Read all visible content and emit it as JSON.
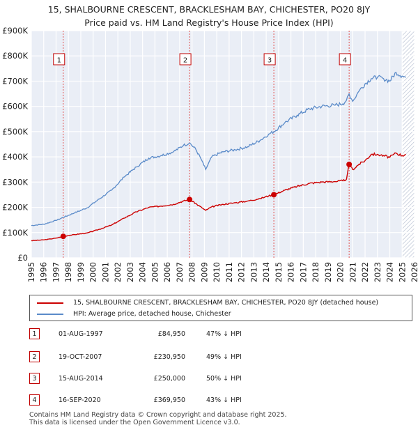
{
  "chart_data": {
    "type": "line",
    "title": "15, SHALBOURNE CRESCENT, BRACKLESHAM BAY, CHICHESTER, PO20 8JY",
    "subtitle": "Price paid vs. HM Land Registry's House Price Index (HPI)",
    "xlim": [
      1995,
      2026
    ],
    "ylim": [
      0,
      900000
    ],
    "x_ticks": [
      "1995",
      "1996",
      "1997",
      "1998",
      "1999",
      "2000",
      "2001",
      "2002",
      "2003",
      "2004",
      "2005",
      "2006",
      "2007",
      "2008",
      "2009",
      "2010",
      "2011",
      "2012",
      "2013",
      "2014",
      "2015",
      "2016",
      "2017",
      "2018",
      "2019",
      "2020",
      "2021",
      "2022",
      "2023",
      "2024",
      "2025",
      "2026"
    ],
    "y_ticks": [
      {
        "value": 0,
        "label": "£0"
      },
      {
        "value": 100000,
        "label": "£100K"
      },
      {
        "value": 200000,
        "label": "£200K"
      },
      {
        "value": 300000,
        "label": "£300K"
      },
      {
        "value": 400000,
        "label": "£400K"
      },
      {
        "value": 500000,
        "label": "£500K"
      },
      {
        "value": 600000,
        "label": "£600K"
      },
      {
        "value": 700000,
        "label": "£700K"
      },
      {
        "value": 800000,
        "label": "£800K"
      },
      {
        "value": 900000,
        "label": "£900K"
      }
    ],
    "grid": true,
    "future_from": 2025.0,
    "series": [
      {
        "name": "15, SHALBOURNE CRESCENT, BRACKLESHAM BAY, CHICHESTER, PO20 8JY (detached house)",
        "color": "#cc0000",
        "x": [
          1995.0,
          1996.0,
          1997.0,
          1997.58,
          1998.5,
          1999.5,
          2000.5,
          2001.5,
          2002.5,
          2003.5,
          2004.5,
          2005.5,
          2006.5,
          2007.3,
          2007.8,
          2008.3,
          2008.8,
          2009.1,
          2009.6,
          2010.5,
          2011.5,
          2012.5,
          2013.5,
          2014.2,
          2014.62,
          2015.5,
          2016.5,
          2017.5,
          2018.5,
          2019.5,
          2020.2,
          2020.5,
          2020.71,
          2021.0,
          2021.5,
          2022.0,
          2022.5,
          2023.0,
          2023.5,
          2024.0,
          2024.5,
          2025.0,
          2025.3
        ],
        "values": [
          68000,
          71000,
          78000,
          84950,
          92000,
          98000,
          113000,
          130000,
          157000,
          182000,
          200000,
          205000,
          212000,
          225000,
          230950,
          215000,
          198000,
          188000,
          202000,
          212000,
          218000,
          225000,
          235000,
          245000,
          250000,
          268000,
          283000,
          295000,
          300000,
          302000,
          305000,
          312000,
          369950,
          350000,
          370000,
          385000,
          410000,
          410000,
          405000,
          398000,
          415000,
          405000,
          410000
        ]
      },
      {
        "name": "HPI: Average price, detached house, Chichester",
        "color": "#5b8bc9",
        "x": [
          1995.0,
          1996.0,
          1997.0,
          1997.58,
          1998.5,
          1999.5,
          2000.5,
          2001.5,
          2002.5,
          2003.5,
          2004.5,
          2005.5,
          2006.5,
          2007.3,
          2007.8,
          2008.3,
          2008.8,
          2009.1,
          2009.6,
          2010.5,
          2011.5,
          2012.5,
          2013.5,
          2014.2,
          2014.62,
          2015.5,
          2016.5,
          2017.5,
          2018.5,
          2019.5,
          2020.2,
          2020.5,
          2020.71,
          2021.0,
          2021.5,
          2022.0,
          2022.5,
          2023.0,
          2023.5,
          2024.0,
          2024.5,
          2025.0,
          2025.3
        ],
        "values": [
          128000,
          133000,
          148000,
          160000,
          178000,
          198000,
          233000,
          268000,
          320000,
          360000,
          395000,
          405000,
          420000,
          445000,
          455000,
          430000,
          385000,
          350000,
          400000,
          420000,
          428000,
          440000,
          465000,
          490000,
          500000,
          535000,
          565000,
          590000,
          600000,
          605000,
          610000,
          625000,
          650000,
          620000,
          660000,
          690000,
          710000,
          715000,
          710000,
          700000,
          735000,
          720000,
          715000
        ]
      }
    ],
    "sales": [
      {
        "label": "1",
        "x": 1997.58,
        "value": 84950
      },
      {
        "label": "2",
        "x": 2007.8,
        "value": 230950
      },
      {
        "label": "3",
        "x": 2014.62,
        "value": 250000
      },
      {
        "label": "4",
        "x": 2020.71,
        "value": 369950
      }
    ]
  },
  "legend": {
    "property_label": "15, SHALBOURNE CRESCENT, BRACKLESHAM BAY, CHICHESTER, PO20 8JY (detached house)",
    "hpi_label": "HPI: Average price, detached house, Chichester",
    "property_color": "#cc0000",
    "hpi_color": "#5b8bc9"
  },
  "sales_table": [
    {
      "num": "1",
      "date": "01-AUG-1997",
      "price": "£84,950",
      "hpi": "47% ↓ HPI"
    },
    {
      "num": "2",
      "date": "19-OCT-2007",
      "price": "£230,950",
      "hpi": "49% ↓ HPI"
    },
    {
      "num": "3",
      "date": "15-AUG-2014",
      "price": "£250,000",
      "hpi": "50% ↓ HPI"
    },
    {
      "num": "4",
      "date": "16-SEP-2020",
      "price": "£369,950",
      "hpi": "43% ↓ HPI"
    }
  ],
  "footer": {
    "line1": "Contains HM Land Registry data © Crown copyright and database right 2025.",
    "line2": "This data is licensed under the Open Government Licence v3.0."
  }
}
